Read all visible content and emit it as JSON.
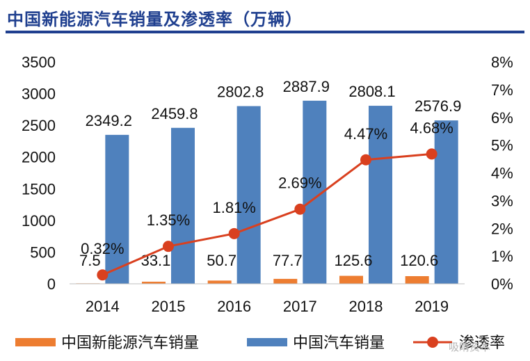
{
  "title": "中国新能源汽车销量及渗透率（万辆）",
  "watermark": "吸睛资本",
  "chart_data": {
    "type": "bar+line",
    "categories": [
      "2014",
      "2015",
      "2016",
      "2017",
      "2018",
      "2019"
    ],
    "series": [
      {
        "name": "中国新能源汽车销量",
        "type": "bar",
        "axis": "left",
        "color": "#ed7d31",
        "values": [
          7.5,
          33.1,
          50.7,
          77.7,
          125.6,
          120.6
        ],
        "labels": [
          "7.5",
          "33.1",
          "50.7",
          "77.7",
          "125.6",
          "120.6"
        ]
      },
      {
        "name": "中国汽车销量",
        "type": "bar",
        "axis": "left",
        "color": "#4f81bd",
        "values": [
          2349.2,
          2459.8,
          2802.8,
          2887.9,
          2808.1,
          2576.9
        ],
        "labels": [
          "2349.2",
          "2459.8",
          "2802.8",
          "2887.9",
          "2808.1",
          "2576.9"
        ]
      },
      {
        "name": "渗透率",
        "type": "line",
        "axis": "right",
        "color": "#d9401f",
        "values": [
          0.32,
          1.35,
          1.81,
          2.69,
          4.47,
          4.68
        ],
        "labels": [
          "0.32%",
          "1.35%",
          "1.81%",
          "2.69%",
          "4.47%",
          "4.68%"
        ]
      }
    ],
    "y_left": {
      "ylim": [
        0,
        3500
      ],
      "ticks": [
        "0",
        "500",
        "1000",
        "1500",
        "2000",
        "2500",
        "3000",
        "3500"
      ]
    },
    "y_right": {
      "ylim": [
        0,
        8
      ],
      "ticks": [
        "0%",
        "1%",
        "2%",
        "3%",
        "4%",
        "5%",
        "6%",
        "7%",
        "8%"
      ]
    },
    "grid": false,
    "legend": "bottom"
  }
}
